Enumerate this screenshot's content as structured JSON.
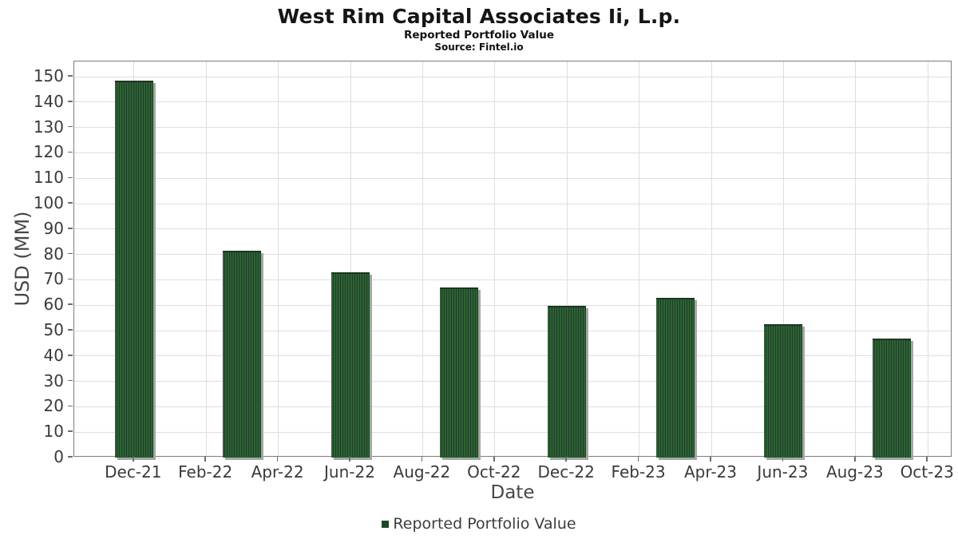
{
  "header": {
    "title": "West Rim Capital Associates Ii, L.p.",
    "subtitle": "Reported Portfolio Value",
    "source": "Source: Fintel.io"
  },
  "chart_data": {
    "type": "bar",
    "title": "West Rim Capital Associates Ii, L.p.",
    "subtitle": "Reported Portfolio Value",
    "source": "Source: Fintel.io",
    "xlabel": "Date",
    "ylabel": "USD (MM)",
    "ylim": [
      0,
      156
    ],
    "ytick_min": 0,
    "ytick_max": 150,
    "ytick_step": 10,
    "grid": "on",
    "legend_position": "bottom-center",
    "series": [
      {
        "name": "Reported Portfolio Value",
        "color": "#2d5c33",
        "x": [
          "Dec-21",
          "Mar-22",
          "Jun-22",
          "Sep-22",
          "Dec-22",
          "Mar-23",
          "Jun-23",
          "Sep-23"
        ],
        "values": [
          148.5,
          81.5,
          73.0,
          67.0,
          59.8,
          63.0,
          52.4,
          47.0
        ]
      }
    ],
    "xtick_labels": [
      "Dec-21",
      "Feb-22",
      "Apr-22",
      "Jun-22",
      "Aug-22",
      "Oct-22",
      "Dec-22",
      "Feb-23",
      "Apr-23",
      "Jun-23",
      "Aug-23",
      "Oct-23"
    ]
  },
  "colors": {
    "bar_fill": "#2d5c33",
    "bar_stripe_dark": "#1a4121",
    "bar_shadow": "#a6a6a6",
    "legend_marker": "#1d4a24",
    "gridline": "#dedede",
    "plot_border": "#7d7d7d",
    "tick_text": "#3a3a3a",
    "axis_label_text": "#474747",
    "title_text": "#151515"
  }
}
